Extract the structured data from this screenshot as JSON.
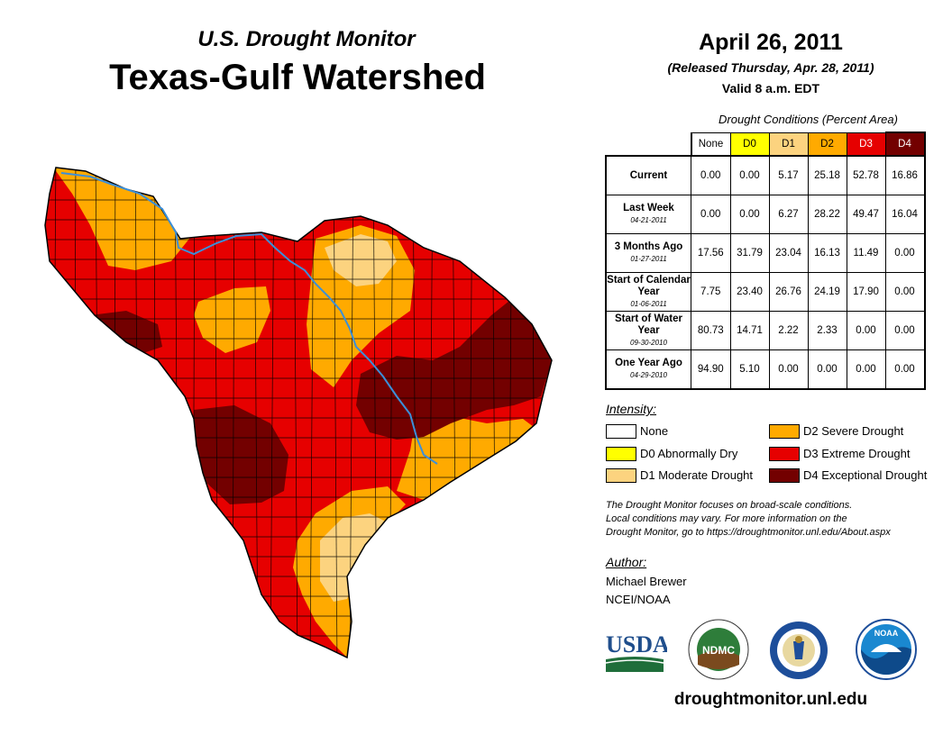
{
  "header": {
    "subtitle": "U.S. Drought Monitor",
    "title": "Texas-Gulf Watershed",
    "date": "April 26, 2011",
    "released": "(Released Thursday, Apr. 28, 2011)",
    "valid": "Valid 8 a.m. EDT"
  },
  "colors": {
    "none": "#ffffff",
    "d0": "#ffff00",
    "d1": "#fcd37f",
    "d2": "#ffaa00",
    "d3": "#e60000",
    "d4": "#730000",
    "river": "#3b8fd9",
    "county_line": "#000000"
  },
  "table": {
    "caption": "Drought Conditions (Percent Area)",
    "columns": [
      "None",
      "D0",
      "D1",
      "D2",
      "D3",
      "D4"
    ],
    "rows": [
      {
        "label": "Current",
        "date": "",
        "values": [
          "0.00",
          "0.00",
          "5.17",
          "25.18",
          "52.78",
          "16.86"
        ]
      },
      {
        "label": "Last Week",
        "date": "04-21-2011",
        "values": [
          "0.00",
          "0.00",
          "6.27",
          "28.22",
          "49.47",
          "16.04"
        ]
      },
      {
        "label": "3 Months Ago",
        "date": "01-27-2011",
        "values": [
          "17.56",
          "31.79",
          "23.04",
          "16.13",
          "11.49",
          "0.00"
        ]
      },
      {
        "label": "Start of Calendar Year",
        "date": "01-06-2011",
        "values": [
          "7.75",
          "23.40",
          "26.76",
          "24.19",
          "17.90",
          "0.00"
        ]
      },
      {
        "label": "Start of Water Year",
        "date": "09-30-2010",
        "values": [
          "80.73",
          "14.71",
          "2.22",
          "2.33",
          "0.00",
          "0.00"
        ]
      },
      {
        "label": "One Year Ago",
        "date": "04-29-2010",
        "values": [
          "94.90",
          "5.10",
          "0.00",
          "0.00",
          "0.00",
          "0.00"
        ]
      }
    ]
  },
  "legend": {
    "title": "Intensity:",
    "items": [
      {
        "label": "None",
        "color": "#ffffff"
      },
      {
        "label": "D0 Abnormally Dry",
        "color": "#ffff00"
      },
      {
        "label": "D1 Moderate Drought",
        "color": "#fcd37f"
      },
      {
        "label": "D2 Severe Drought",
        "color": "#ffaa00"
      },
      {
        "label": "D3 Extreme Drought",
        "color": "#e60000"
      },
      {
        "label": "D4 Exceptional Drought",
        "color": "#730000"
      }
    ]
  },
  "note": {
    "line1": "The Drought Monitor focuses on broad-scale conditions.",
    "line2": "Local conditions may vary. For more information on the",
    "line3": "Drought Monitor, go to https://droughtmonitor.unl.edu/About.aspx"
  },
  "author": {
    "title": "Author:",
    "name": "Michael Brewer",
    "org": "NCEI/NOAA"
  },
  "logos": {
    "usda": "USDA",
    "ndmc": "NDMC",
    "noaa": "NOAA"
  },
  "footer": {
    "website": "droughtmonitor.unl.edu"
  }
}
